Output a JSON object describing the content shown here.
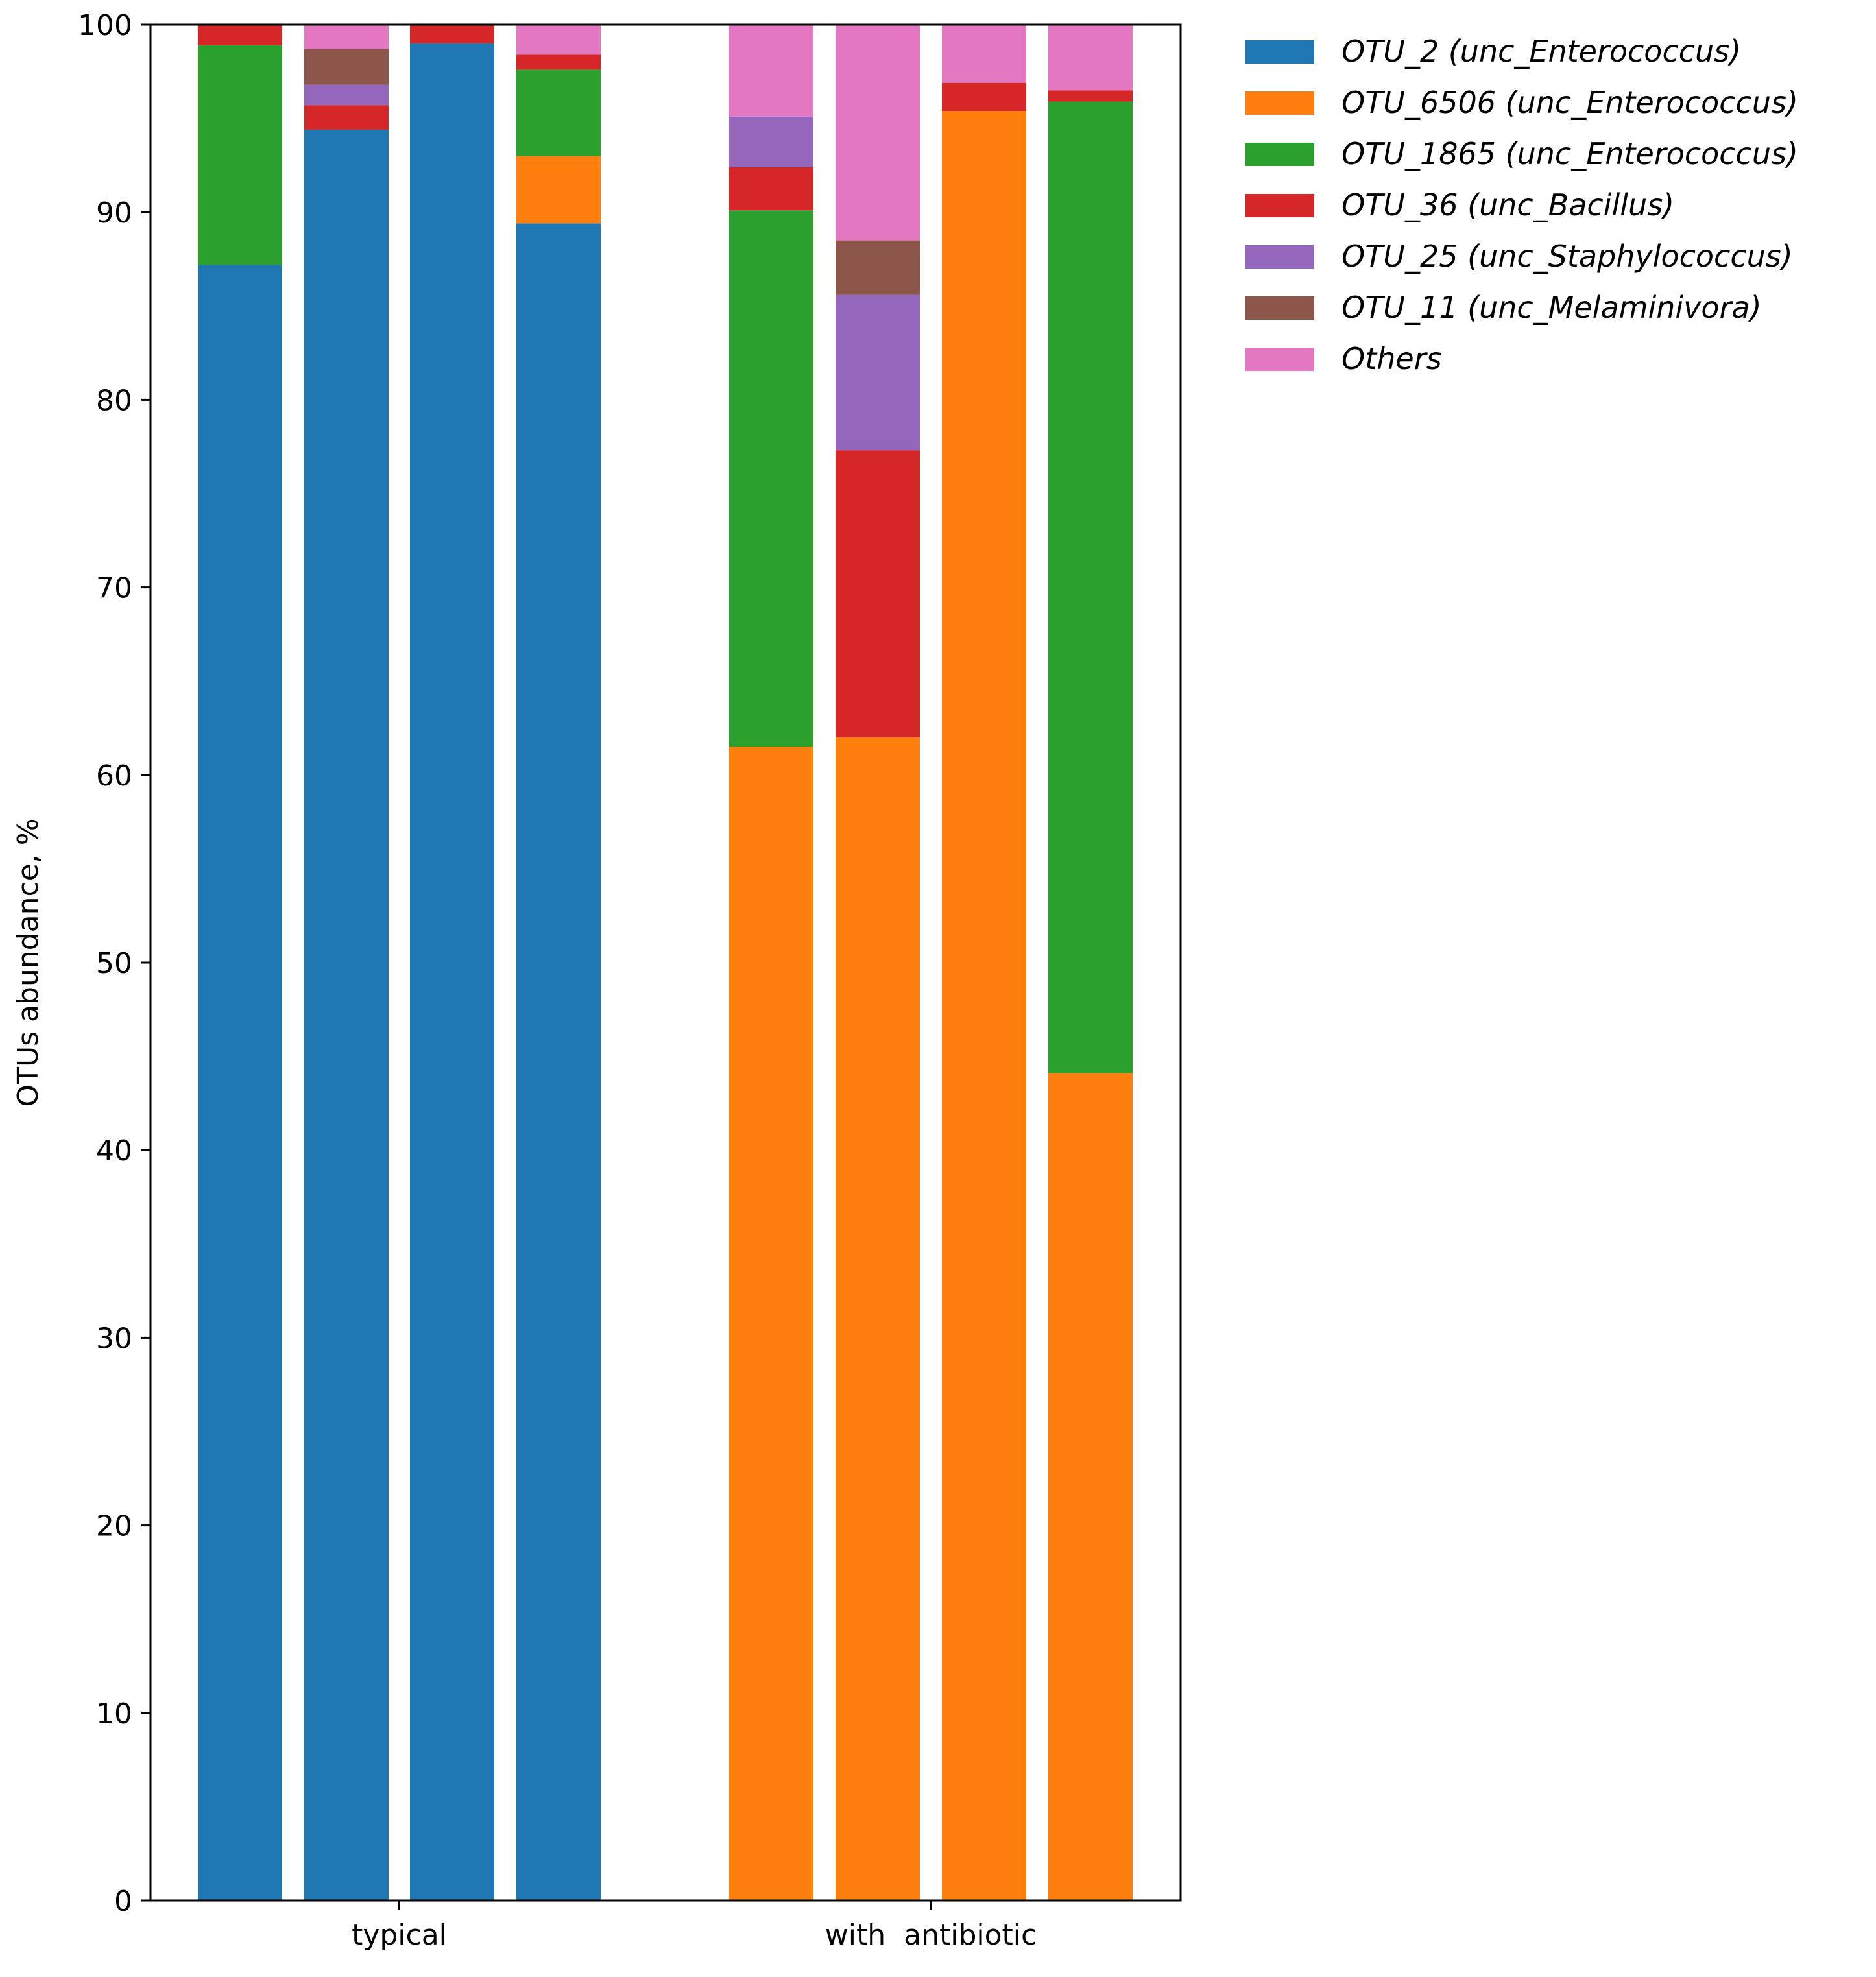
{
  "chart_data": {
    "type": "bar",
    "stacked": true,
    "ylabel": "OTUs abundance, %",
    "xlabel": "",
    "ylim": [
      0,
      100
    ],
    "yticks": [
      "0",
      "10",
      "20",
      "30",
      "40",
      "50",
      "60",
      "70",
      "80",
      "90",
      "100"
    ],
    "groups": [
      {
        "label": "typical",
        "bars": [
          0,
          1,
          2,
          3
        ]
      },
      {
        "label": "with  antibiotic",
        "bars": [
          4,
          5,
          6,
          7
        ]
      }
    ],
    "series": [
      {
        "name": "OTU_2 (unc_Enterococcus)",
        "color": "#1f77b4",
        "values": [
          87.2,
          94.4,
          99.0,
          89.4,
          0,
          0,
          0,
          0
        ]
      },
      {
        "name": "OTU_6506 (unc_Enterococcus)",
        "color": "#ff7f0e",
        "values": [
          0,
          0,
          0,
          3.6,
          61.5,
          62.0,
          95.4,
          44.1
        ]
      },
      {
        "name": "OTU_1865 (unc_Enterococcus)",
        "color": "#2ca02c",
        "values": [
          11.7,
          0,
          0,
          4.6,
          28.6,
          0,
          0,
          51.8
        ]
      },
      {
        "name": "OTU_36 (unc_Bacillus)",
        "color": "#d62728",
        "values": [
          1.1,
          1.3,
          1.0,
          0.8,
          2.3,
          15.3,
          1.5,
          0.6
        ]
      },
      {
        "name": "OTU_25 (unc_Staphylococcus)",
        "color": "#9467bd",
        "values": [
          0,
          1.1,
          0,
          0,
          2.7,
          8.3,
          0,
          0
        ]
      },
      {
        "name": "OTU_11 (unc_Melaminivora)",
        "color": "#8c564b",
        "values": [
          0,
          1.9,
          0,
          0,
          0,
          2.9,
          0,
          0
        ]
      },
      {
        "name": "Others",
        "color": "#e377c2",
        "values": [
          0,
          1.3,
          0,
          1.6,
          4.9,
          11.5,
          3.1,
          3.5
        ]
      }
    ]
  }
}
